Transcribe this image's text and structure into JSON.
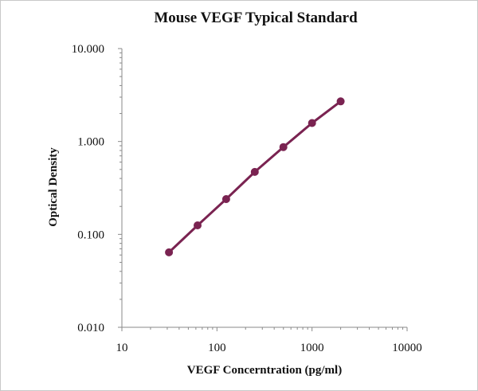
{
  "chart_data": {
    "type": "scatter",
    "title": "Mouse VEGF Typical Standard",
    "xlabel": "VEGF Concerntration (pg/ml)",
    "ylabel": "Optical Density",
    "xscale": "log",
    "yscale": "log",
    "xlim": [
      10,
      10000
    ],
    "ylim": [
      0.01,
      10
    ],
    "x_ticks": [
      10,
      100,
      1000,
      10000
    ],
    "x_tick_labels": [
      "10",
      "100",
      "1000",
      "10000"
    ],
    "y_ticks": [
      0.01,
      0.1,
      1,
      10
    ],
    "y_tick_labels": [
      "0.010",
      "0.100",
      "1.000",
      "10.000"
    ],
    "grid": false,
    "legend": "none",
    "series": [
      {
        "x": [
          31.25,
          62.5,
          125,
          250,
          500,
          1000,
          2000
        ],
        "y": [
          0.064,
          0.125,
          0.24,
          0.47,
          0.87,
          1.58,
          2.7
        ],
        "marker_color": "#7a2351",
        "line_color": "#7a2351"
      }
    ]
  }
}
